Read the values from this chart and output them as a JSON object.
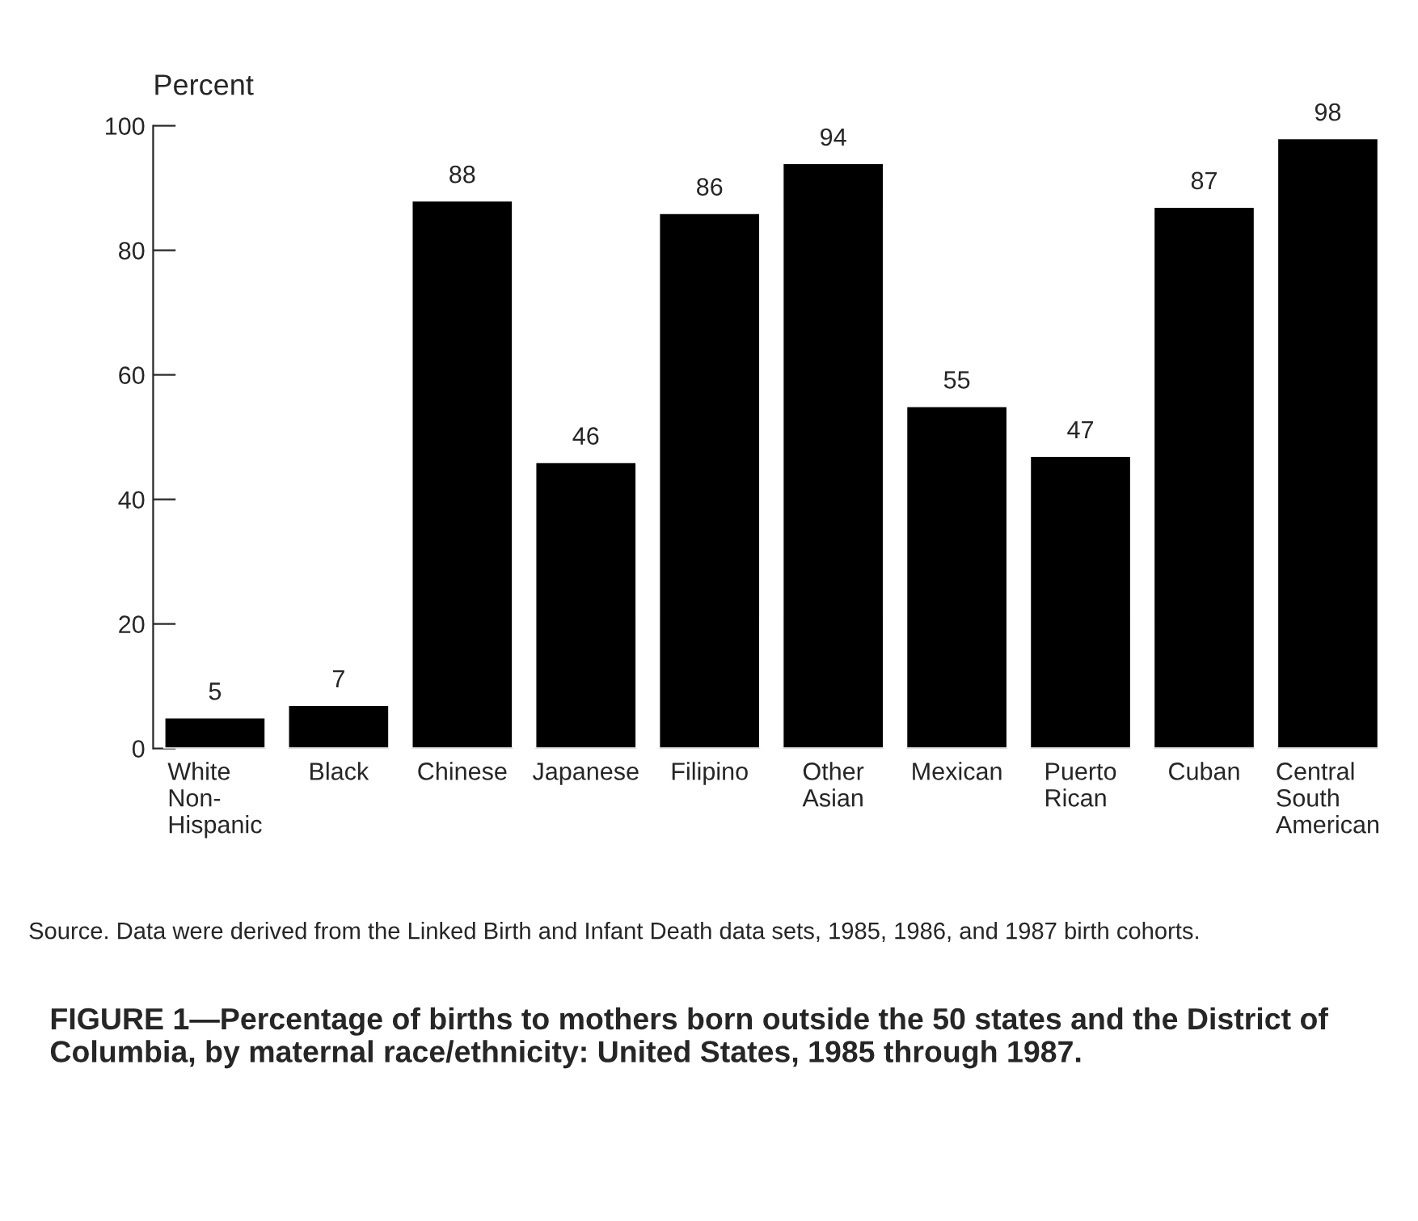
{
  "chart_data": {
    "type": "bar",
    "title": "FIGURE 1—Percentage of births to mothers born outside the 50 states and the District of Columbia, by maternal race/ethnicity: United States, 1985 through 1987.",
    "ylabel": "Percent",
    "categories": [
      "White\nNon-\nHispanic",
      "Black",
      "Chinese",
      "Japanese",
      "Filipino",
      "Other\nAsian",
      "Mexican",
      "Puerto\nRican",
      "Cuban",
      "Central\nSouth\nAmerican"
    ],
    "values": [
      5,
      7,
      88,
      46,
      86,
      94,
      55,
      47,
      87,
      98
    ],
    "color": "#000000",
    "ylim": [
      0,
      100
    ],
    "yticks": [
      0,
      20,
      40,
      60,
      80,
      100
    ],
    "data_labels": true,
    "grid": false,
    "legend": false,
    "annotations": [
      "Source. Data were derived from the Linked Birth and Infant Death data sets, 1985, 1986, and 1987 birth cohorts."
    ]
  }
}
